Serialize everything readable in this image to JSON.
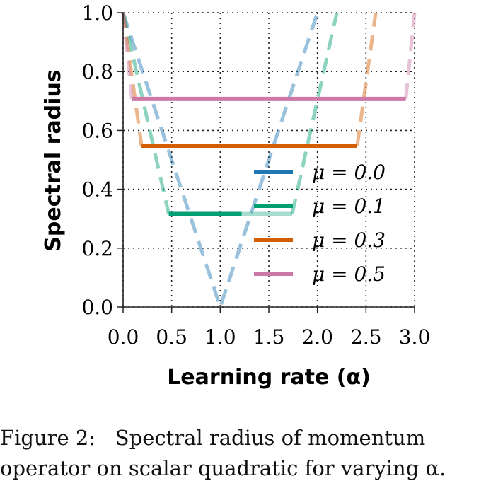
{
  "chart_data": {
    "type": "line",
    "title": "",
    "xlabel": "Learning rate (α)",
    "ylabel": "Spectral radius",
    "xlim": [
      0.0,
      3.0
    ],
    "ylim": [
      0.0,
      1.0
    ],
    "xticks": [
      "0.0",
      "0.5",
      "1.0",
      "1.5",
      "2.0",
      "2.5",
      "3.0"
    ],
    "yticks": [
      "0.0",
      "0.2",
      "0.4",
      "0.6",
      "0.8",
      "1.0"
    ],
    "grid": true,
    "legend_position": "lower-right",
    "series": [
      {
        "name": "μ = 0.0",
        "color": "#1f77b4",
        "segments": [
          {
            "style": "dashed",
            "x": [
              0.0,
              1.0,
              2.0
            ],
            "y": [
              1.0,
              0.0,
              1.0
            ]
          }
        ]
      },
      {
        "name": "μ = 0.1",
        "color": "#009e73",
        "segments": [
          {
            "style": "dashed",
            "x": [
              0.0,
              0.47
            ],
            "y": [
              1.0,
              0.316
            ]
          },
          {
            "style": "solid",
            "x": [
              0.47,
              1.22
            ],
            "y": [
              0.316,
              0.316
            ]
          },
          {
            "style": "solid-faded",
            "x": [
              1.22,
              1.74
            ],
            "y": [
              0.316,
              0.316
            ]
          },
          {
            "style": "dashed",
            "x": [
              1.74,
              2.2
            ],
            "y": [
              0.316,
              1.0
            ]
          }
        ]
      },
      {
        "name": "μ = 0.3",
        "color": "#d55e00",
        "segments": [
          {
            "style": "dashed",
            "x": [
              0.0,
              0.19
            ],
            "y": [
              1.0,
              0.548
            ]
          },
          {
            "style": "solid",
            "x": [
              0.19,
              2.41
            ],
            "y": [
              0.548,
              0.548
            ]
          },
          {
            "style": "dashed",
            "x": [
              2.41,
              2.6
            ],
            "y": [
              0.548,
              1.0
            ]
          }
        ]
      },
      {
        "name": "μ = 0.5",
        "color": "#cc79a7",
        "segments": [
          {
            "style": "dashed",
            "x": [
              0.0,
              0.09
            ],
            "y": [
              1.0,
              0.707
            ]
          },
          {
            "style": "solid",
            "x": [
              0.09,
              2.91
            ],
            "y": [
              0.707,
              0.707
            ]
          },
          {
            "style": "dashed",
            "x": [
              2.91,
              3.0
            ],
            "y": [
              0.707,
              1.0
            ]
          }
        ]
      }
    ]
  },
  "caption": {
    "line1": "Figure 2:   Spectral radius of momentum",
    "line2": "operator on scalar quadratic for varying α."
  }
}
